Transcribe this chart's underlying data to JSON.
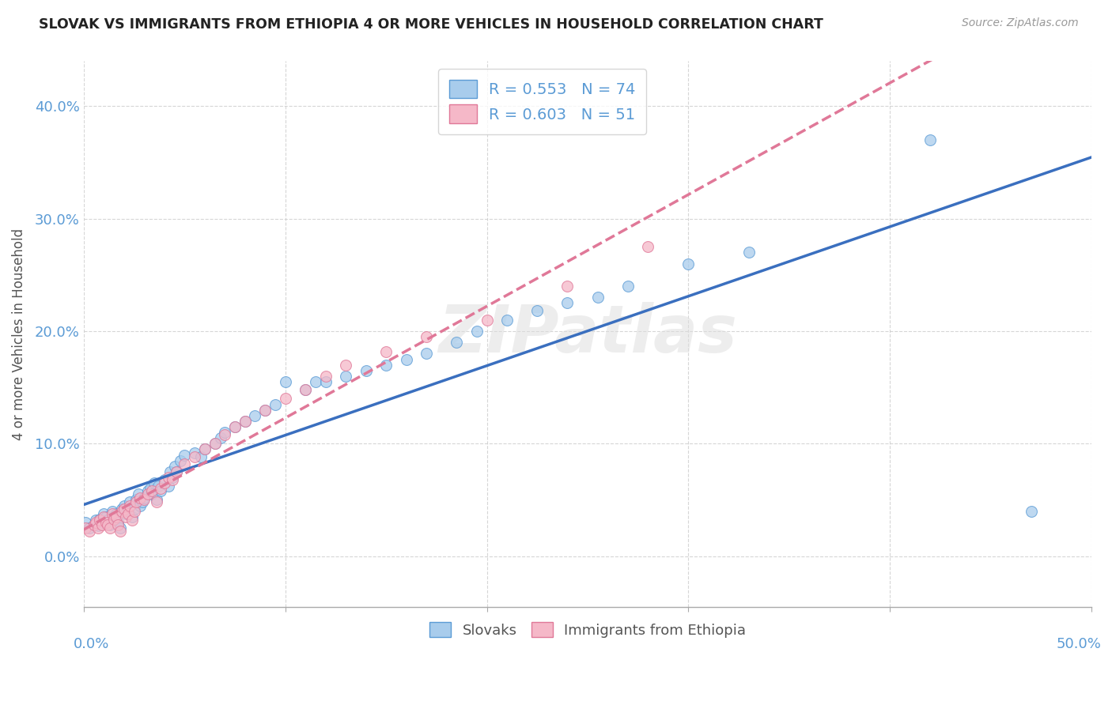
{
  "title": "SLOVAK VS IMMIGRANTS FROM ETHIOPIA 4 OR MORE VEHICLES IN HOUSEHOLD CORRELATION CHART",
  "source": "Source: ZipAtlas.com",
  "ylabel": "4 or more Vehicles in Household",
  "ytick_vals": [
    0.0,
    0.1,
    0.2,
    0.3,
    0.4
  ],
  "ytick_labels": [
    "0.0%",
    "10.0%",
    "20.0%",
    "30.0%",
    "40.0%"
  ],
  "xlim": [
    0,
    0.5
  ],
  "ylim": [
    -0.045,
    0.44
  ],
  "legend_label1": "R = 0.553   N = 74",
  "legend_label2": "R = 0.603   N = 51",
  "legend_bottom_label1": "Slovaks",
  "legend_bottom_label2": "Immigrants from Ethiopia",
  "color_blue": "#A8CCEC",
  "color_pink": "#F5B8C8",
  "edge_blue": "#5B9BD5",
  "edge_pink": "#E07898",
  "line_blue_color": "#3A6FBF",
  "line_pink_color": "#E07898",
  "blue_x": [
    0.001,
    0.003,
    0.005,
    0.006,
    0.007,
    0.008,
    0.009,
    0.01,
    0.011,
    0.012,
    0.013,
    0.014,
    0.015,
    0.016,
    0.017,
    0.018,
    0.019,
    0.02,
    0.021,
    0.022,
    0.023,
    0.024,
    0.025,
    0.026,
    0.027,
    0.028,
    0.029,
    0.03,
    0.032,
    0.033,
    0.034,
    0.035,
    0.036,
    0.037,
    0.038,
    0.04,
    0.042,
    0.043,
    0.044,
    0.045,
    0.046,
    0.048,
    0.05,
    0.055,
    0.058,
    0.06,
    0.065,
    0.068,
    0.07,
    0.075,
    0.08,
    0.085,
    0.09,
    0.095,
    0.1,
    0.11,
    0.115,
    0.12,
    0.13,
    0.14,
    0.15,
    0.16,
    0.17,
    0.185,
    0.195,
    0.21,
    0.225,
    0.24,
    0.255,
    0.27,
    0.3,
    0.33,
    0.42,
    0.47
  ],
  "blue_y": [
    0.03,
    0.025,
    0.028,
    0.032,
    0.027,
    0.033,
    0.03,
    0.038,
    0.035,
    0.032,
    0.028,
    0.04,
    0.035,
    0.038,
    0.03,
    0.025,
    0.042,
    0.045,
    0.038,
    0.04,
    0.048,
    0.035,
    0.042,
    0.05,
    0.055,
    0.045,
    0.048,
    0.052,
    0.058,
    0.06,
    0.055,
    0.065,
    0.05,
    0.062,
    0.058,
    0.068,
    0.062,
    0.075,
    0.07,
    0.08,
    0.075,
    0.085,
    0.09,
    0.092,
    0.088,
    0.095,
    0.1,
    0.105,
    0.11,
    0.115,
    0.12,
    0.125,
    0.13,
    0.135,
    0.155,
    0.148,
    0.155,
    0.155,
    0.16,
    0.165,
    0.17,
    0.175,
    0.18,
    0.19,
    0.2,
    0.21,
    0.218,
    0.225,
    0.23,
    0.24,
    0.26,
    0.27,
    0.37,
    0.04
  ],
  "pink_x": [
    0.001,
    0.003,
    0.005,
    0.006,
    0.007,
    0.008,
    0.009,
    0.01,
    0.011,
    0.012,
    0.013,
    0.014,
    0.015,
    0.016,
    0.017,
    0.018,
    0.019,
    0.02,
    0.021,
    0.022,
    0.023,
    0.024,
    0.025,
    0.026,
    0.028,
    0.03,
    0.032,
    0.034,
    0.036,
    0.038,
    0.04,
    0.042,
    0.044,
    0.046,
    0.05,
    0.055,
    0.06,
    0.065,
    0.07,
    0.075,
    0.08,
    0.09,
    0.1,
    0.11,
    0.12,
    0.13,
    0.15,
    0.17,
    0.2,
    0.24,
    0.28
  ],
  "pink_y": [
    0.025,
    0.022,
    0.028,
    0.03,
    0.025,
    0.032,
    0.028,
    0.035,
    0.03,
    0.028,
    0.025,
    0.038,
    0.033,
    0.035,
    0.028,
    0.022,
    0.04,
    0.042,
    0.035,
    0.038,
    0.045,
    0.032,
    0.04,
    0.048,
    0.052,
    0.05,
    0.055,
    0.058,
    0.048,
    0.06,
    0.065,
    0.07,
    0.068,
    0.075,
    0.082,
    0.088,
    0.095,
    0.1,
    0.108,
    0.115,
    0.12,
    0.13,
    0.14,
    0.148,
    0.16,
    0.17,
    0.182,
    0.195,
    0.21,
    0.24,
    0.275
  ]
}
